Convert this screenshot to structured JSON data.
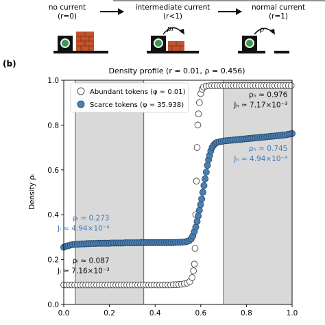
{
  "schematic": {
    "stages": [
      {
        "title": "no current",
        "subtitle": "(r=0)"
      },
      {
        "title": "intermediate current",
        "subtitle": "(r<1)",
        "arrow_label": "pr"
      },
      {
        "title": "normal current",
        "subtitle": "(r=1)",
        "arrow_label": "p"
      }
    ]
  },
  "panel_label": "(b)",
  "chart_data": {
    "type": "scatter",
    "title": "Density profile (r = 0.01, ρ = 0.456)",
    "xlabel": "",
    "ylabel": "Density ρᵢ",
    "xlim": [
      0.0,
      1.0
    ],
    "ylim": [
      0.0,
      1.0
    ],
    "xticks": [
      "0.0",
      "0.2",
      "0.4",
      "0.6",
      "0.8",
      "1.0"
    ],
    "yticks": [
      "0.0",
      "0.2",
      "0.4",
      "0.6",
      "0.8",
      "1.0"
    ],
    "shaded_regions": [
      [
        0.05,
        0.35
      ],
      [
        0.7,
        1.0
      ]
    ],
    "legend": {
      "placement": "top-left",
      "entries": [
        "Abundant tokens (φ = 0.01)",
        "Scarce tokens (φ = 35.938)"
      ]
    },
    "series": [
      {
        "name": "Abundant tokens (φ = 0.01)",
        "marker": "open-circle",
        "color": "#ffffff",
        "points": [
          [
            0.0,
            0.087
          ],
          [
            0.012,
            0.087
          ],
          [
            0.024,
            0.087
          ],
          [
            0.036,
            0.087
          ],
          [
            0.048,
            0.087
          ],
          [
            0.06,
            0.087
          ],
          [
            0.072,
            0.087
          ],
          [
            0.084,
            0.087
          ],
          [
            0.096,
            0.087
          ],
          [
            0.108,
            0.087
          ],
          [
            0.12,
            0.087
          ],
          [
            0.132,
            0.087
          ],
          [
            0.144,
            0.087
          ],
          [
            0.156,
            0.087
          ],
          [
            0.168,
            0.087
          ],
          [
            0.18,
            0.087
          ],
          [
            0.192,
            0.087
          ],
          [
            0.204,
            0.087
          ],
          [
            0.216,
            0.087
          ],
          [
            0.228,
            0.087
          ],
          [
            0.24,
            0.087
          ],
          [
            0.252,
            0.087
          ],
          [
            0.264,
            0.087
          ],
          [
            0.276,
            0.087
          ],
          [
            0.288,
            0.087
          ],
          [
            0.3,
            0.087
          ],
          [
            0.312,
            0.087
          ],
          [
            0.324,
            0.087
          ],
          [
            0.336,
            0.087
          ],
          [
            0.348,
            0.087
          ],
          [
            0.36,
            0.087
          ],
          [
            0.372,
            0.087
          ],
          [
            0.384,
            0.087
          ],
          [
            0.396,
            0.087
          ],
          [
            0.408,
            0.087
          ],
          [
            0.42,
            0.087
          ],
          [
            0.432,
            0.087
          ],
          [
            0.444,
            0.087
          ],
          [
            0.456,
            0.087
          ],
          [
            0.468,
            0.087
          ],
          [
            0.48,
            0.088
          ],
          [
            0.492,
            0.088
          ],
          [
            0.504,
            0.089
          ],
          [
            0.516,
            0.09
          ],
          [
            0.528,
            0.092
          ],
          [
            0.54,
            0.095
          ],
          [
            0.552,
            0.102
          ],
          [
            0.562,
            0.12
          ],
          [
            0.568,
            0.15
          ],
          [
            0.572,
            0.18
          ],
          [
            0.575,
            0.25
          ],
          [
            0.578,
            0.4
          ],
          [
            0.581,
            0.55
          ],
          [
            0.584,
            0.7
          ],
          [
            0.587,
            0.8
          ],
          [
            0.59,
            0.85
          ],
          [
            0.594,
            0.9
          ],
          [
            0.6,
            0.94
          ],
          [
            0.606,
            0.96
          ],
          [
            0.612,
            0.97
          ],
          [
            0.624,
            0.974
          ],
          [
            0.636,
            0.975
          ],
          [
            0.648,
            0.976
          ],
          [
            0.66,
            0.976
          ],
          [
            0.672,
            0.976
          ],
          [
            0.684,
            0.976
          ],
          [
            0.696,
            0.976
          ],
          [
            0.708,
            0.976
          ],
          [
            0.72,
            0.976
          ],
          [
            0.732,
            0.976
          ],
          [
            0.744,
            0.976
          ],
          [
            0.756,
            0.976
          ],
          [
            0.768,
            0.976
          ],
          [
            0.78,
            0.976
          ],
          [
            0.792,
            0.976
          ],
          [
            0.804,
            0.976
          ],
          [
            0.816,
            0.976
          ],
          [
            0.828,
            0.976
          ],
          [
            0.84,
            0.976
          ],
          [
            0.852,
            0.976
          ],
          [
            0.864,
            0.976
          ],
          [
            0.876,
            0.976
          ],
          [
            0.888,
            0.976
          ],
          [
            0.9,
            0.976
          ],
          [
            0.912,
            0.976
          ],
          [
            0.924,
            0.976
          ],
          [
            0.936,
            0.976
          ],
          [
            0.948,
            0.976
          ],
          [
            0.96,
            0.976
          ],
          [
            0.972,
            0.976
          ],
          [
            0.984,
            0.976
          ],
          [
            0.996,
            0.976
          ]
        ]
      },
      {
        "name": "Scarce tokens (φ = 35.938)",
        "marker": "filled-circle",
        "color": "#4a7fb0",
        "points": [
          [
            0.0,
            0.255
          ],
          [
            0.01,
            0.26
          ],
          [
            0.02,
            0.262
          ],
          [
            0.03,
            0.265
          ],
          [
            0.04,
            0.267
          ],
          [
            0.05,
            0.268
          ],
          [
            0.06,
            0.268
          ],
          [
            0.07,
            0.269
          ],
          [
            0.08,
            0.27
          ],
          [
            0.09,
            0.27
          ],
          [
            0.1,
            0.271
          ],
          [
            0.11,
            0.271
          ],
          [
            0.12,
            0.272
          ],
          [
            0.13,
            0.272
          ],
          [
            0.14,
            0.272
          ],
          [
            0.15,
            0.273
          ],
          [
            0.16,
            0.273
          ],
          [
            0.17,
            0.273
          ],
          [
            0.18,
            0.273
          ],
          [
            0.19,
            0.273
          ],
          [
            0.2,
            0.273
          ],
          [
            0.21,
            0.274
          ],
          [
            0.22,
            0.274
          ],
          [
            0.23,
            0.274
          ],
          [
            0.24,
            0.274
          ],
          [
            0.25,
            0.274
          ],
          [
            0.26,
            0.274
          ],
          [
            0.27,
            0.275
          ],
          [
            0.28,
            0.275
          ],
          [
            0.29,
            0.275
          ],
          [
            0.3,
            0.275
          ],
          [
            0.31,
            0.275
          ],
          [
            0.32,
            0.275
          ],
          [
            0.33,
            0.275
          ],
          [
            0.34,
            0.276
          ],
          [
            0.35,
            0.276
          ],
          [
            0.36,
            0.276
          ],
          [
            0.37,
            0.276
          ],
          [
            0.38,
            0.276
          ],
          [
            0.39,
            0.276
          ],
          [
            0.4,
            0.276
          ],
          [
            0.41,
            0.276
          ],
          [
            0.42,
            0.276
          ],
          [
            0.43,
            0.276
          ],
          [
            0.44,
            0.276
          ],
          [
            0.45,
            0.276
          ],
          [
            0.46,
            0.276
          ],
          [
            0.47,
            0.276
          ],
          [
            0.48,
            0.276
          ],
          [
            0.49,
            0.277
          ],
          [
            0.5,
            0.277
          ],
          [
            0.51,
            0.277
          ],
          [
            0.52,
            0.278
          ],
          [
            0.53,
            0.279
          ],
          [
            0.54,
            0.281
          ],
          [
            0.55,
            0.285
          ],
          [
            0.558,
            0.292
          ],
          [
            0.565,
            0.305
          ],
          [
            0.572,
            0.325
          ],
          [
            0.578,
            0.345
          ],
          [
            0.584,
            0.37
          ],
          [
            0.589,
            0.395
          ],
          [
            0.594,
            0.42
          ],
          [
            0.599,
            0.445
          ],
          [
            0.604,
            0.47
          ],
          [
            0.609,
            0.5
          ],
          [
            0.614,
            0.53
          ],
          [
            0.619,
            0.56
          ],
          [
            0.624,
            0.59
          ],
          [
            0.629,
            0.62
          ],
          [
            0.634,
            0.645
          ],
          [
            0.639,
            0.665
          ],
          [
            0.644,
            0.685
          ],
          [
            0.65,
            0.7
          ],
          [
            0.656,
            0.71
          ],
          [
            0.663,
            0.718
          ],
          [
            0.67,
            0.722
          ],
          [
            0.68,
            0.725
          ],
          [
            0.69,
            0.727
          ],
          [
            0.7,
            0.729
          ],
          [
            0.71,
            0.73
          ],
          [
            0.72,
            0.731
          ],
          [
            0.73,
            0.732
          ],
          [
            0.74,
            0.733
          ],
          [
            0.75,
            0.734
          ],
          [
            0.76,
            0.735
          ],
          [
            0.77,
            0.736
          ],
          [
            0.78,
            0.737
          ],
          [
            0.79,
            0.738
          ],
          [
            0.8,
            0.739
          ],
          [
            0.81,
            0.74
          ],
          [
            0.82,
            0.741
          ],
          [
            0.83,
            0.742
          ],
          [
            0.84,
            0.743
          ],
          [
            0.85,
            0.744
          ],
          [
            0.86,
            0.745
          ],
          [
            0.87,
            0.746
          ],
          [
            0.88,
            0.747
          ],
          [
            0.89,
            0.748
          ],
          [
            0.9,
            0.749
          ],
          [
            0.91,
            0.75
          ],
          [
            0.92,
            0.751
          ],
          [
            0.93,
            0.752
          ],
          [
            0.94,
            0.753
          ],
          [
            0.95,
            0.754
          ],
          [
            0.96,
            0.755
          ],
          [
            0.97,
            0.756
          ],
          [
            0.98,
            0.758
          ],
          [
            0.99,
            0.76
          ],
          [
            1.0,
            0.762
          ]
        ]
      }
    ],
    "annotations": [
      {
        "lines": [
          "ρₕ ≈ 0.976",
          "Jₕ ≈ 7.17×10⁻³"
        ],
        "color": "#111111",
        "at": [
          0.98,
          0.925
        ],
        "align": "end"
      },
      {
        "lines": [
          "ρₕ ≈ 0.745",
          "Jₕ ≈ 4.94×10⁻⁴"
        ],
        "color": "#3f7cba",
        "at": [
          0.98,
          0.685
        ],
        "align": "end"
      },
      {
        "lines": [
          "ρₗ ≈ 0.273",
          "Jₗ ≈ 4.94×10⁻⁴"
        ],
        "color": "#3f7cba",
        "at": [
          0.2,
          0.375
        ],
        "align": "end"
      },
      {
        "lines": [
          "ρₗ ≈ 0.087",
          "Jₗ ≈ 7.16×10⁻³"
        ],
        "color": "#111111",
        "at": [
          0.2,
          0.185
        ],
        "align": "end"
      }
    ]
  }
}
